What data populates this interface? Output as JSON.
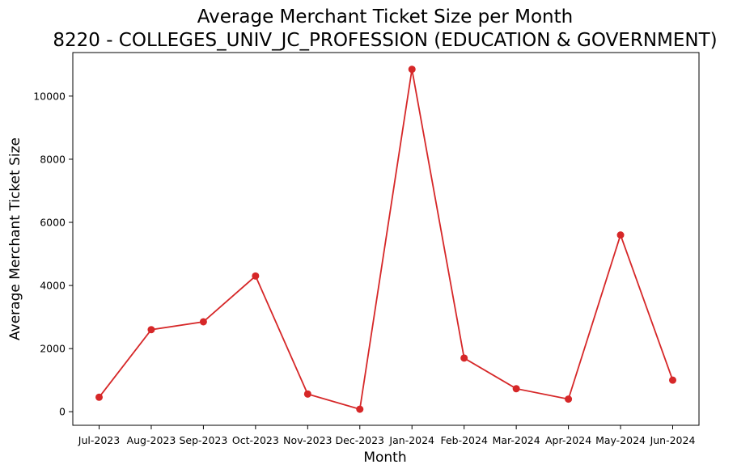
{
  "chart_data": {
    "type": "line",
    "title": "Average Merchant Ticket Size per Month",
    "subtitle": "8220 - COLLEGES_UNIV_JC_PROFESSION (EDUCATION & GOVERNMENT)",
    "xlabel": "Month",
    "ylabel": "Average Merchant Ticket Size",
    "categories": [
      "Jul-2023",
      "Aug-2023",
      "Sep-2023",
      "Oct-2023",
      "Nov-2023",
      "Dec-2023",
      "Jan-2024",
      "Feb-2024",
      "Mar-2024",
      "Apr-2024",
      "May-2024",
      "Jun-2024"
    ],
    "series": [
      {
        "values": [
          460,
          2600,
          2850,
          4300,
          560,
          80,
          10850,
          1700,
          730,
          400,
          5600,
          1000
        ],
        "color": "#d62728",
        "marker": "circle"
      }
    ],
    "ylim": [
      -430,
      11380
    ],
    "yticks": [
      0,
      2000,
      4000,
      6000,
      8000,
      10000
    ],
    "grid": false,
    "legend": "none"
  }
}
